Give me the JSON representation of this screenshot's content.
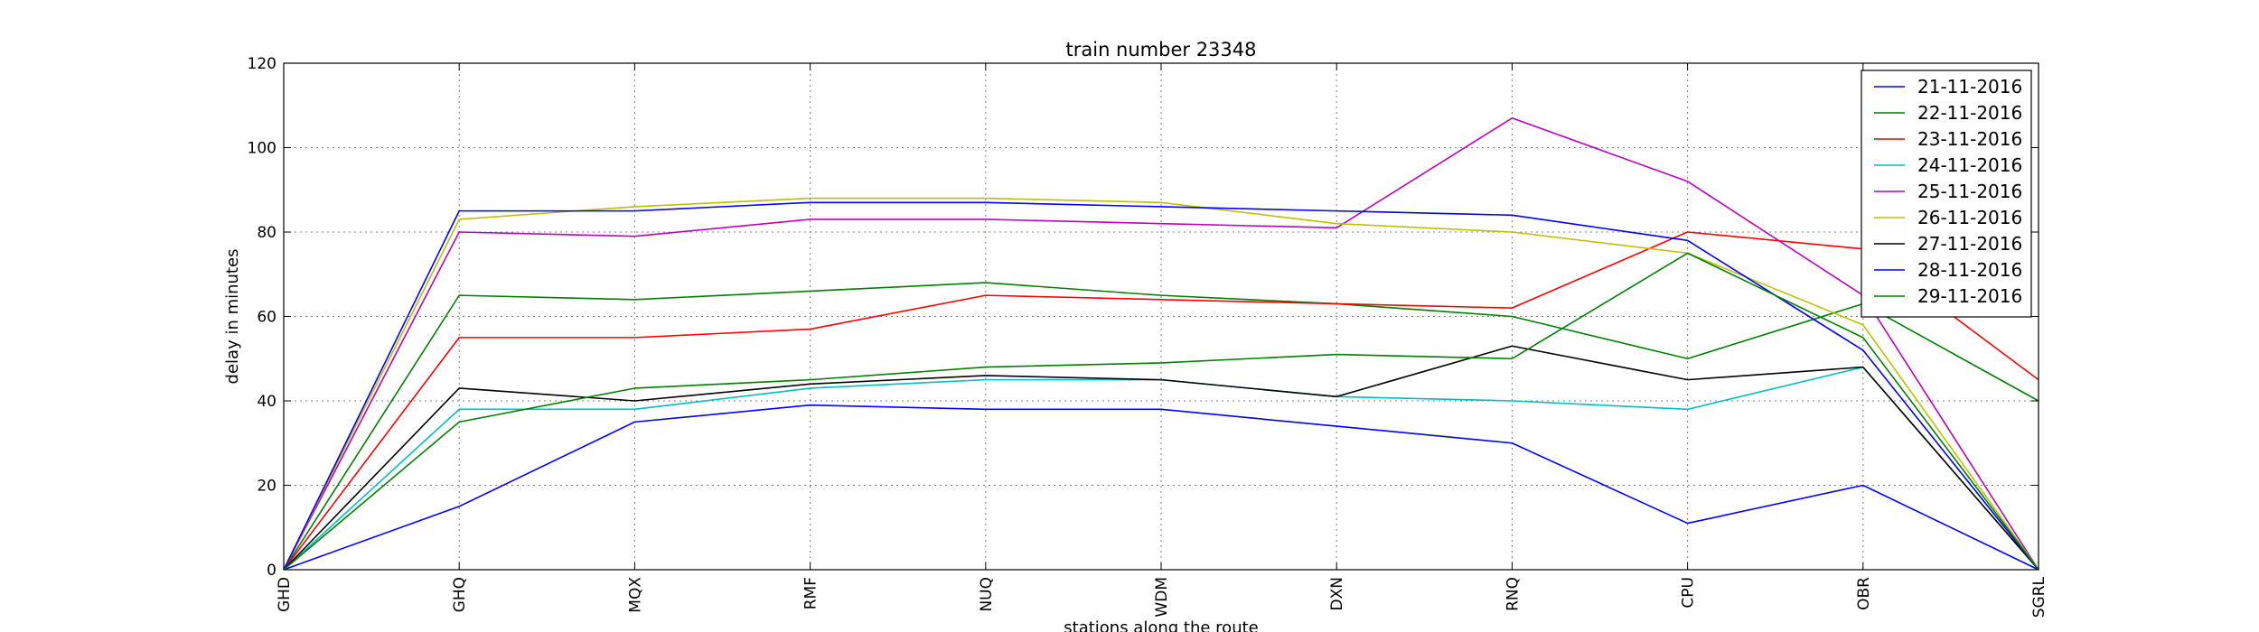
{
  "chart_data": {
    "type": "line",
    "title": "train number 23348",
    "xlabel": "stations along the route",
    "ylabel": "delay in minutes",
    "categories": [
      "GHD",
      "GHQ",
      "MQX",
      "RMF",
      "NUQ",
      "WDM",
      "DXN",
      "RNQ",
      "CPU",
      "OBR",
      "SGRL"
    ],
    "ylim": [
      0,
      120
    ],
    "yticks": [
      0,
      20,
      40,
      60,
      80,
      100,
      120
    ],
    "grid": true,
    "legend_position": "top-right",
    "series": [
      {
        "name": "21-11-2016",
        "color": "#0000ff",
        "values": [
          0,
          15,
          35,
          39,
          38,
          38,
          34,
          30,
          11,
          20,
          0
        ]
      },
      {
        "name": "22-11-2016",
        "color": "#008000",
        "values": [
          0,
          65,
          64,
          66,
          68,
          65,
          63,
          60,
          50,
          63,
          40
        ]
      },
      {
        "name": "23-11-2016",
        "color": "#ff0000",
        "values": [
          0,
          55,
          55,
          57,
          65,
          64,
          63,
          62,
          80,
          76,
          45
        ]
      },
      {
        "name": "24-11-2016",
        "color": "#00bfbf",
        "values": [
          0,
          38,
          38,
          43,
          45,
          45,
          41,
          40,
          38,
          48,
          0
        ]
      },
      {
        "name": "25-11-2016",
        "color": "#bf00bf",
        "values": [
          0,
          80,
          79,
          83,
          83,
          82,
          81,
          107,
          92,
          65,
          0
        ]
      },
      {
        "name": "26-11-2016",
        "color": "#bfbf00",
        "values": [
          0,
          83,
          86,
          88,
          88,
          87,
          82,
          80,
          75,
          58,
          0
        ]
      },
      {
        "name": "27-11-2016",
        "color": "#000000",
        "values": [
          0,
          43,
          40,
          44,
          46,
          45,
          41,
          53,
          45,
          48,
          0
        ]
      },
      {
        "name": "28-11-2016",
        "color": "#0000ff",
        "values": [
          0,
          85,
          85,
          87,
          87,
          86,
          85,
          84,
          78,
          52,
          0
        ]
      },
      {
        "name": "29-11-2016",
        "color": "#008000",
        "values": [
          0,
          35,
          43,
          45,
          48,
          49,
          51,
          50,
          75,
          55,
          0
        ]
      }
    ]
  }
}
